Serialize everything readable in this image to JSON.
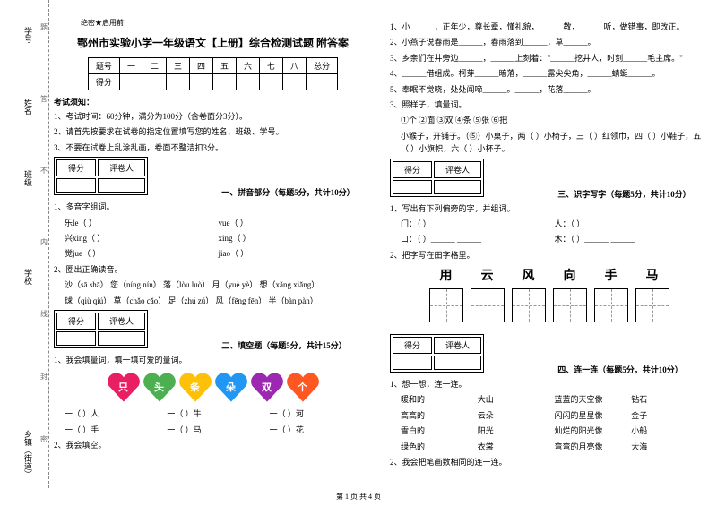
{
  "margin": {
    "labels": [
      "学号",
      "姓名",
      "班级",
      "学校",
      "乡镇（街道）"
    ],
    "dots": [
      "题",
      "答",
      "不",
      "内",
      "线",
      "封",
      "密"
    ]
  },
  "secret": "绝密★启用前",
  "title": "鄂州市实验小学一年级语文【上册】综合检测试题 附答案",
  "scoreTable": {
    "headers": [
      "题号",
      "一",
      "二",
      "三",
      "四",
      "五",
      "六",
      "七",
      "八",
      "总分"
    ],
    "row": [
      "得分",
      "",
      "",
      "",
      "",
      "",
      "",
      "",
      "",
      ""
    ]
  },
  "notice": {
    "head": "考试须知：",
    "items": [
      "1、考试时间：60分钟，满分为100分（含卷面分3分）。",
      "2、请首先按要求在试卷的指定位置填写您的姓名、班级、学号。",
      "3、不要在试卷上乱涂乱画，卷面不整洁扣3分。"
    ]
  },
  "scoreBox": {
    "c1": "得分",
    "c2": "评卷人"
  },
  "s1": {
    "title": "一、拼音部分（每题5分，共计10分）",
    "q1": "1、多音字组词。",
    "pairs": [
      [
        "乐le（          ）",
        "yue（          ）"
      ],
      [
        "兴xing（          ）",
        "xing（          ）"
      ],
      [
        "觉jue（          ）",
        "jiao（          ）"
      ]
    ],
    "q2": "2、圈出正确读音。",
    "lines": [
      "沙（sā shā）   您（níng nín）   落（lòu luò）   月（yuè yè）   想（xǎng xiǎng）",
      "球（qiù qiú）   草（chǎo cǎo）   足（zhú zú）   风（fēng fēn）   半（bàn pàn）"
    ]
  },
  "s2": {
    "title": "二、填空题（每题5分，共计15分）",
    "q1": "1、我会填量词，填一填可爱的量词。",
    "hearts": [
      {
        "t": "只",
        "c": "#e91e63"
      },
      {
        "t": "头",
        "c": "#4caf50"
      },
      {
        "t": "条",
        "c": "#ffc107"
      },
      {
        "t": "朵",
        "c": "#2196f3"
      },
      {
        "t": "双",
        "c": "#9c27b0"
      },
      {
        "t": "个",
        "c": "#ff5722"
      }
    ],
    "rows": [
      [
        "一（   ）人",
        "一（   ）牛",
        "一（   ）河"
      ],
      [
        "一（   ）手",
        "一（   ）马",
        "一（   ）花"
      ]
    ],
    "q2": "2、我会填空。"
  },
  "right": {
    "fill": [
      "1、小______，正年少，尊长辈，懂礼貌，______教，______听，做错事，即改正。",
      "2、小燕子说春雨是______，春雨落到______，草______。",
      "3、乡亲们在井旁边______，______上刻着：\"______挖井人，时刻______毛主席。\"",
      "4、______借组成。柯芽______暗落，______露尖尖角，______蜻蜓______。",
      "5、奉眠不觉晓，处处闻啼______。______，花落______。"
    ],
    "q3": "3、照样子，填量词。",
    "q3opts": "①个   ②面   ③双   ④条   ⑤张   ⑥把",
    "q3line": "小猴子，开铺子。（⑤）小桌子，两（   ）小椅子，三（   ）红领巾，四（   ）小鞋子，五（   ）小旗帜，六（   ）小杯子。"
  },
  "s3": {
    "title": "三、识字写字（每题5分，共计10分）",
    "q1": "1、写出有下列偏旁的字，并组词。",
    "lines": [
      [
        "门：（     ）______   ______",
        "人：（     ）______   ______"
      ],
      [
        "口：（     ）______   ______",
        "木：（     ）______   ______"
      ]
    ],
    "q2": "2、把字写在田字格里。",
    "chars": [
      "用",
      "云",
      "风",
      "向",
      "手",
      "马"
    ]
  },
  "s4": {
    "title": "四、连一连（每题5分，共计10分）",
    "q1": "1、想一想，连一连。",
    "rows": [
      [
        "暖和的",
        "大山",
        "蓝蓝的天空像",
        "钻石"
      ],
      [
        "高高的",
        "云朵",
        "闪闪的星星像",
        "金子"
      ],
      [
        "雪白的",
        "阳光",
        "灿烂的阳光像",
        "小船"
      ],
      [
        "绿色的",
        "衣裳",
        "弯弯的月亮像",
        "大海"
      ]
    ],
    "q2": "2、我会把笔画数相同的连一连。"
  },
  "footer": "第 1 页 共 4 页"
}
